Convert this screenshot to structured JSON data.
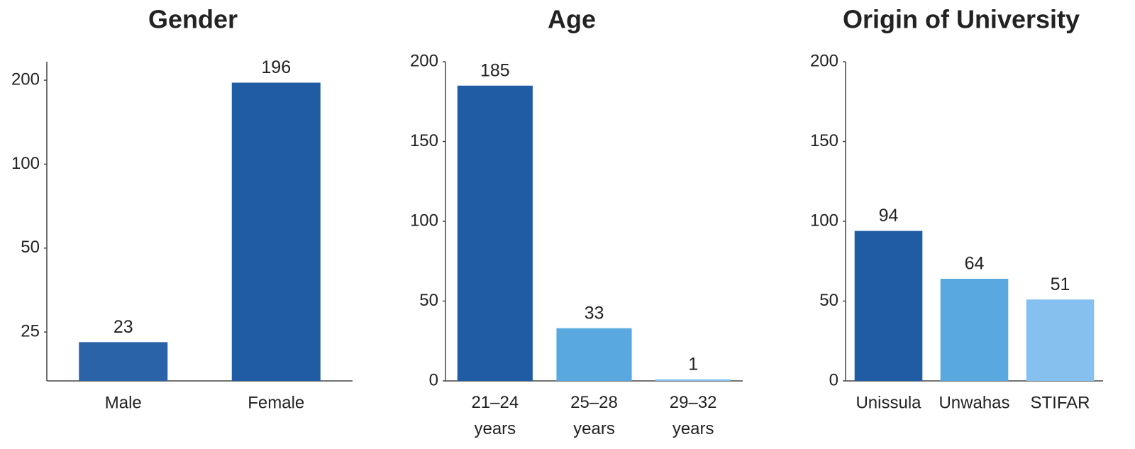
{
  "chart_data": [
    {
      "type": "bar",
      "title": "Gender",
      "categories": [
        "Male",
        "Female"
      ],
      "values": [
        23,
        196
      ],
      "colors": [
        "#2b63a9",
        "#1f5ca3"
      ],
      "log_scale": true,
      "ylim": [
        16.7,
        233
      ],
      "yticks": [
        25,
        50,
        100,
        200
      ],
      "grid": false
    },
    {
      "type": "bar",
      "title": "Age",
      "categories": [
        "21–24 years",
        "25–28 years",
        "29–32 years"
      ],
      "values": [
        185,
        33,
        1
      ],
      "colors": [
        "#1f5ca3",
        "#5aa8e0",
        "#86c0ef"
      ],
      "log_scale": false,
      "ylim": [
        0,
        200
      ],
      "yticks": [
        0,
        50,
        100,
        150,
        200
      ],
      "grid": false
    },
    {
      "type": "bar",
      "title": "Origin of University",
      "categories": [
        "Unissula",
        "Unwahas",
        "STIFAR"
      ],
      "values": [
        94,
        64,
        51
      ],
      "colors": [
        "#1f5ca3",
        "#5aa8e0",
        "#86c0ef"
      ],
      "log_scale": false,
      "ylim": [
        0,
        200
      ],
      "yticks": [
        0,
        50,
        100,
        150,
        200
      ],
      "grid": false
    }
  ]
}
